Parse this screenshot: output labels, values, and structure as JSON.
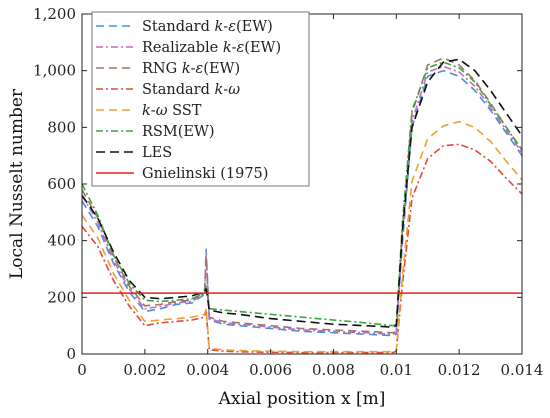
{
  "chart_data": {
    "type": "line",
    "title": "",
    "xlabel": "Axial position x [m]",
    "ylabel": "Local Nusselt number",
    "xlim": [
      0,
      0.014
    ],
    "ylim": [
      0,
      1200
    ],
    "xticks": [
      0,
      0.002,
      0.004,
      0.006,
      0.008,
      0.01,
      0.012,
      0.014
    ],
    "xtick_labels": [
      "0",
      "0.002",
      "0.004",
      "0.006",
      "0.008",
      "0.01",
      "0.012",
      "0.014"
    ],
    "yticks": [
      0,
      200,
      400,
      600,
      800,
      1000,
      1200
    ],
    "ytick_labels": [
      "0",
      "200",
      "400",
      "600",
      "800",
      "1,000",
      "1,200"
    ],
    "grid": false,
    "legend_position": "top-left",
    "series": [
      {
        "name": "Standard k-ε(EW)",
        "legend_parts": [
          [
            "Standard ",
            "normal"
          ],
          [
            "k",
            "italic"
          ],
          [
            "-",
            "normal"
          ],
          [
            "ε",
            "italic"
          ],
          [
            "(EW)",
            "normal"
          ]
        ],
        "color": "#4a90d9",
        "dash": "8,5",
        "x": [
          0,
          0.0005,
          0.001,
          0.0015,
          0.002,
          0.0025,
          0.003,
          0.0035,
          0.0039,
          0.00395,
          0.00405,
          0.0045,
          0.005,
          0.006,
          0.007,
          0.008,
          0.009,
          0.0099,
          0.01,
          0.0102,
          0.0105,
          0.011,
          0.0115,
          0.012,
          0.0125,
          0.013,
          0.0135,
          0.014
        ],
        "y": [
          540,
          450,
          320,
          220,
          150,
          160,
          175,
          180,
          210,
          370,
          120,
          105,
          100,
          90,
          80,
          75,
          70,
          65,
          70,
          400,
          800,
          980,
          1000,
          980,
          930,
          860,
          780,
          700
        ]
      },
      {
        "name": "Realizable k-ε(EW)",
        "legend_parts": [
          [
            "Realizable ",
            "normal"
          ],
          [
            "k",
            "italic"
          ],
          [
            "-",
            "normal"
          ],
          [
            "ε",
            "italic"
          ],
          [
            "(EW)",
            "normal"
          ]
        ],
        "color": "#c26ac4",
        "dash": "7,3,2,3",
        "x": [
          0,
          0.0005,
          0.001,
          0.0015,
          0.002,
          0.0025,
          0.003,
          0.0035,
          0.0039,
          0.00395,
          0.00405,
          0.0045,
          0.005,
          0.006,
          0.007,
          0.008,
          0.009,
          0.0099,
          0.01,
          0.0102,
          0.0105,
          0.011,
          0.0115,
          0.012,
          0.0125,
          0.013,
          0.0135,
          0.014
        ],
        "y": [
          560,
          465,
          330,
          230,
          160,
          168,
          180,
          185,
          215,
          350,
          125,
          110,
          105,
          95,
          85,
          80,
          75,
          70,
          75,
          420,
          820,
          995,
          1015,
          995,
          945,
          870,
          790,
          710
        ]
      },
      {
        "name": "RNG k-ε(EW)",
        "legend_parts": [
          [
            "RNG ",
            "normal"
          ],
          [
            "k",
            "italic"
          ],
          [
            "-",
            "normal"
          ],
          [
            "ε",
            "italic"
          ],
          [
            "(EW)",
            "normal"
          ]
        ],
        "color": "#a0756a",
        "dash": "8,5",
        "x": [
          0,
          0.0005,
          0.001,
          0.0015,
          0.002,
          0.0025,
          0.003,
          0.0035,
          0.0039,
          0.00395,
          0.00405,
          0.0045,
          0.005,
          0.006,
          0.007,
          0.008,
          0.009,
          0.0099,
          0.01,
          0.0102,
          0.0105,
          0.011,
          0.0115,
          0.012,
          0.0125,
          0.013,
          0.0135,
          0.014
        ],
        "y": [
          580,
          480,
          345,
          240,
          170,
          175,
          185,
          190,
          220,
          340,
          130,
          115,
          110,
          100,
          90,
          85,
          80,
          75,
          80,
          450,
          850,
          1020,
          1045,
          1020,
          965,
          885,
          800,
          720
        ]
      },
      {
        "name": "Standard k-ω",
        "legend_parts": [
          [
            "Standard ",
            "normal"
          ],
          [
            "k",
            "italic"
          ],
          [
            "-",
            "normal"
          ],
          [
            "ω",
            "italic"
          ]
        ],
        "color": "#e0483a",
        "dash": "7,3,2,3",
        "x": [
          0,
          0.0005,
          0.001,
          0.0015,
          0.002,
          0.0025,
          0.003,
          0.0035,
          0.0039,
          0.00395,
          0.00405,
          0.0045,
          0.005,
          0.006,
          0.007,
          0.008,
          0.009,
          0.0099,
          0.01,
          0.0102,
          0.0105,
          0.011,
          0.0115,
          0.012,
          0.0125,
          0.013,
          0.0135,
          0.014
        ],
        "y": [
          450,
          380,
          260,
          170,
          100,
          110,
          115,
          120,
          130,
          150,
          15,
          10,
          8,
          6,
          5,
          5,
          5,
          5,
          10,
          250,
          550,
          690,
          735,
          740,
          720,
          680,
          620,
          565
        ]
      },
      {
        "name": "k-ω SST",
        "legend_parts": [
          [
            "k",
            "italic"
          ],
          [
            "-",
            "normal"
          ],
          [
            "ω",
            "italic"
          ],
          [
            " SST",
            "normal"
          ]
        ],
        "color": "#f0a030",
        "dash": "8,5",
        "x": [
          0,
          0.0005,
          0.001,
          0.0015,
          0.002,
          0.0025,
          0.003,
          0.0035,
          0.0039,
          0.00395,
          0.00405,
          0.0045,
          0.005,
          0.006,
          0.007,
          0.008,
          0.009,
          0.0099,
          0.01,
          0.0102,
          0.0105,
          0.011,
          0.0115,
          0.012,
          0.0125,
          0.013,
          0.0135,
          0.014
        ],
        "y": [
          490,
          410,
          285,
          190,
          115,
          120,
          125,
          130,
          140,
          160,
          20,
          15,
          12,
          10,
          8,
          8,
          8,
          8,
          12,
          280,
          610,
          760,
          805,
          820,
          800,
          750,
          680,
          615
        ]
      },
      {
        "name": "RSM(EW)",
        "legend_parts": [
          [
            "RSM(EW)",
            "normal"
          ]
        ],
        "color": "#3aa53a",
        "dash": "7,3,2,3",
        "x": [
          0,
          0.0005,
          0.001,
          0.0015,
          0.002,
          0.0025,
          0.003,
          0.0035,
          0.0039,
          0.00395,
          0.00405,
          0.0045,
          0.005,
          0.006,
          0.007,
          0.008,
          0.009,
          0.0099,
          0.01,
          0.0102,
          0.0105,
          0.011,
          0.0115,
          0.012,
          0.0125,
          0.013,
          0.0135,
          0.014
        ],
        "y": [
          600,
          490,
          350,
          250,
          190,
          185,
          190,
          195,
          215,
          240,
          160,
          155,
          150,
          140,
          130,
          120,
          110,
          100,
          105,
          470,
          860,
          1010,
          1030,
          1010,
          960,
          880,
          800,
          720
        ]
      },
      {
        "name": "LES",
        "legend_parts": [
          [
            "LES",
            "normal"
          ]
        ],
        "color": "#111111",
        "dash": "9,5",
        "x": [
          0,
          0.0005,
          0.001,
          0.0015,
          0.002,
          0.0025,
          0.003,
          0.0035,
          0.0039,
          0.00395,
          0.00405,
          0.0045,
          0.005,
          0.006,
          0.007,
          0.008,
          0.009,
          0.0099,
          0.01,
          0.0102,
          0.0105,
          0.011,
          0.0115,
          0.012,
          0.0125,
          0.013,
          0.0135,
          0.014
        ],
        "y": [
          560,
          480,
          360,
          260,
          200,
          195,
          200,
          205,
          220,
          230,
          155,
          145,
          140,
          125,
          115,
          105,
          100,
          95,
          100,
          440,
          800,
          960,
          1030,
          1040,
          1000,
          930,
          850,
          770
        ]
      },
      {
        "name": "Gnielinski (1975)",
        "legend_parts": [
          [
            "Gnielinski (1975)",
            "normal"
          ]
        ],
        "color": "#e8201f",
        "dash": "",
        "x": [
          0,
          0.014
        ],
        "y": [
          215,
          215
        ]
      }
    ]
  }
}
